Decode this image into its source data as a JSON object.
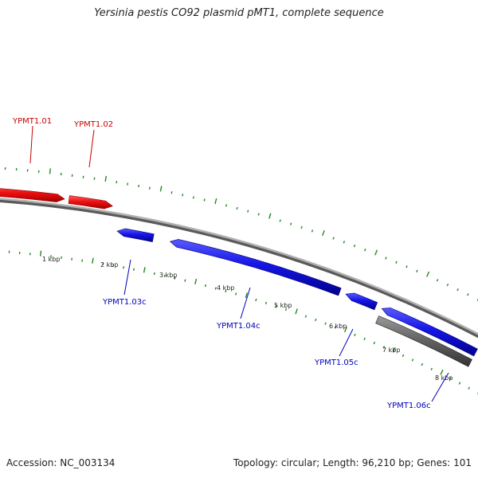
{
  "title": "Yersinia pestis CO92 plasmid pMT1, complete sequence",
  "footer": {
    "accession": "Accession: NC_003134",
    "summary": "Topology: circular; Length: 96,210 bp; Genes: 101"
  },
  "colors": {
    "forward_strand": "#e00000",
    "reverse_strand": "#0000dd",
    "pseudo_feature": "#555555",
    "backbone": "#888888",
    "ticks": "#228822",
    "label_forward": "#cc0000",
    "label_reverse": "#0000bb"
  },
  "scale_labels": [
    "1 kbp",
    "2 kbp",
    "3 kbp",
    "4 kbp",
    "5 kbp",
    "6 kbp",
    "7 kbp",
    "8 kbp"
  ],
  "genes": [
    {
      "name": "YPMT1.01",
      "strand": "forward"
    },
    {
      "name": "YPMT1.02",
      "strand": "forward"
    },
    {
      "name": "YPMT1.03c",
      "strand": "reverse"
    },
    {
      "name": "YPMT1.04c",
      "strand": "reverse"
    },
    {
      "name": "YPMT1.05c",
      "strand": "reverse"
    },
    {
      "name": "YPMT1.06c",
      "strand": "reverse"
    }
  ]
}
